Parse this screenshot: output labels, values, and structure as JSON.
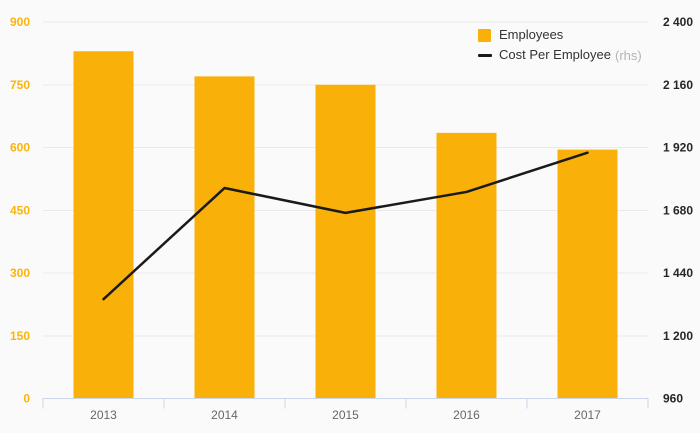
{
  "colors": {
    "background": "#FAFAFA",
    "bar": "#F9B008",
    "line": "#1A1A1A",
    "grid": "#EAEAEA",
    "axis_line": "#CCD6EB",
    "left_axis_text": "#FBB40E",
    "right_axis_text": "#262626",
    "x_axis_text": "#666666",
    "legend_text": "#333333",
    "legend_muted": "#B5B5B5"
  },
  "legend": {
    "items": [
      {
        "label": "Employees"
      },
      {
        "label": "Cost Per Employee",
        "suffix": "(rhs)"
      }
    ]
  },
  "chart_data": {
    "type": "combo",
    "title": "",
    "xlabel": "",
    "ylabel": "",
    "categories": [
      "2013",
      "2014",
      "2015",
      "2016",
      "2017"
    ],
    "series": [
      {
        "name": "Employees",
        "type": "bar",
        "axis": "left",
        "values": [
          830,
          770,
          750,
          635,
          595
        ]
      },
      {
        "name": "Cost Per Employee (rhs)",
        "type": "line",
        "axis": "right",
        "values": [
          1340,
          1765,
          1670,
          1750,
          1900
        ]
      }
    ],
    "left_axis": {
      "min": 0,
      "max": 900,
      "ticks": [
        900,
        750,
        600,
        450,
        300,
        150,
        0
      ],
      "tick_labels": [
        "900",
        "750",
        "600",
        "450",
        "300",
        "150",
        "0"
      ]
    },
    "right_axis": {
      "min": 960,
      "max": 2400,
      "ticks": [
        2400,
        2160,
        1920,
        1680,
        1440,
        1200,
        960
      ],
      "tick_labels": [
        "2 400",
        "2 160",
        "1 920",
        "1 680",
        "1 440",
        "1 200",
        "960"
      ]
    },
    "grid": true,
    "legend_position": "top-right"
  }
}
